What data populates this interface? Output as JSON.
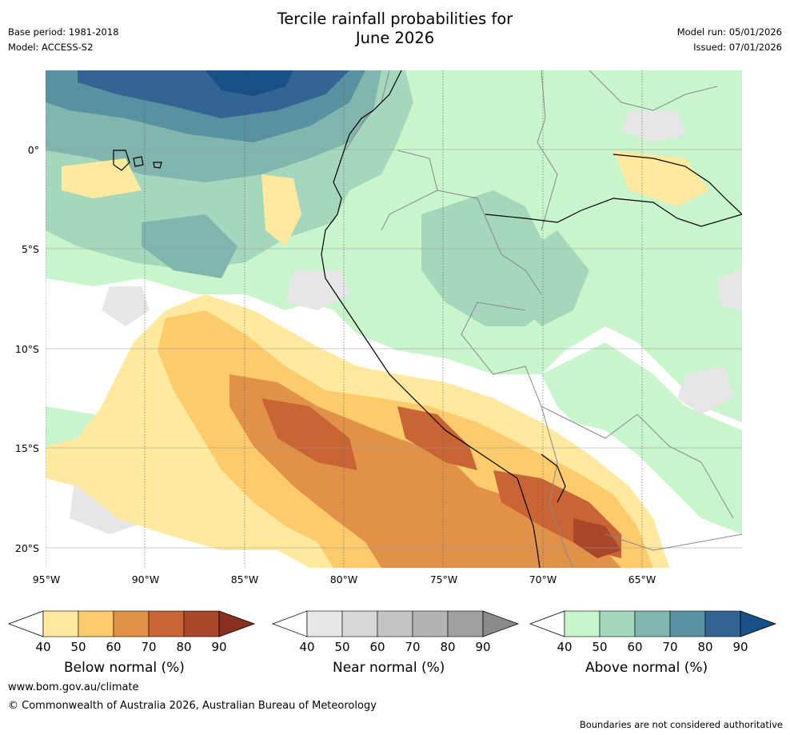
{
  "header": {
    "title_line1": "Tercile rainfall probabilities for",
    "title_line2": "June 2026",
    "base_period": "Base period: 1981-2018",
    "model": "Model: ACCESS-S2",
    "model_run": "Model run: 05/01/2026",
    "issued": "Issued: 07/01/2026"
  },
  "map": {
    "lat_labels": [
      "0°",
      "5°S",
      "10°S",
      "15°S",
      "20°S"
    ],
    "lon_labels": [
      "95°W",
      "90°W",
      "85°W",
      "80°W",
      "75°W",
      "70°W",
      "65°W"
    ],
    "lat_values": [
      0,
      -5,
      -10,
      -15,
      -20
    ],
    "lon_values": [
      -95,
      -90,
      -85,
      -80,
      -75,
      -70,
      -65
    ],
    "extent": {
      "lon_min": -95,
      "lon_max": -60,
      "lat_min": -21,
      "lat_max": 4
    }
  },
  "colorbars": {
    "below": {
      "title": "Below normal (%)",
      "ticks": [
        "40",
        "50",
        "60",
        "70",
        "80",
        "90"
      ],
      "colors": [
        "#ffffff",
        "#fee99f",
        "#fdcb6b",
        "#e19249",
        "#c96535",
        "#a8472a",
        "#8b3020"
      ]
    },
    "near": {
      "title": "Near normal (%)",
      "ticks": [
        "40",
        "50",
        "60",
        "70",
        "80",
        "90"
      ],
      "colors": [
        "#ffffff",
        "#e6e6e6",
        "#d7d7d7",
        "#c4c4c4",
        "#b3b3b3",
        "#a0a0a0",
        "#8a8a8a"
      ]
    },
    "above": {
      "title": "Above normal (%)",
      "ticks": [
        "40",
        "50",
        "60",
        "70",
        "80",
        "90"
      ],
      "colors": [
        "#ffffff",
        "#c8f5cc",
        "#a4d7bb",
        "#80b6ae",
        "#5892a0",
        "#336493",
        "#174f87"
      ]
    }
  },
  "footer": {
    "url": "www.bom.gov.au/climate",
    "copyright": "© Commonwealth of Australia 2026, Australian Bureau of Meteorology",
    "boundary_note": "Boundaries are not considered authoritative"
  }
}
